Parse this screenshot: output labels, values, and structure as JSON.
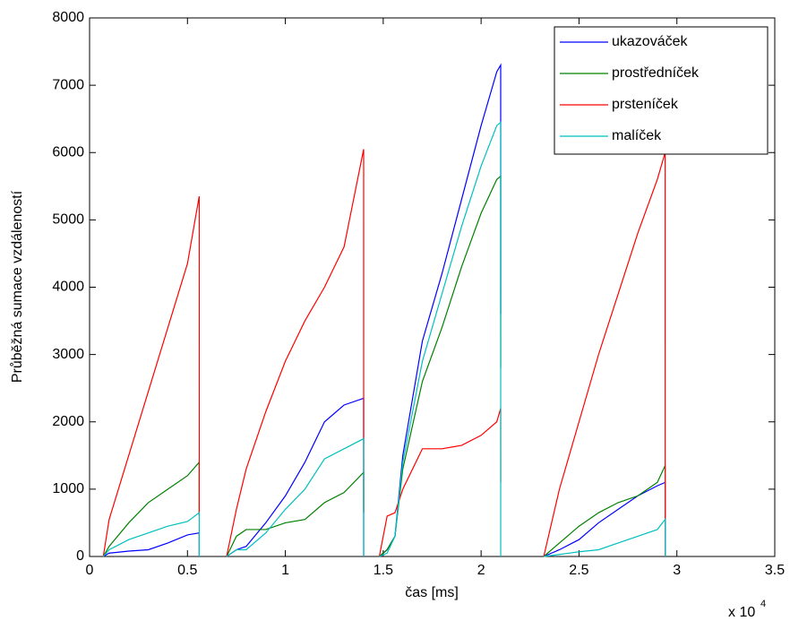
{
  "chart_data": {
    "type": "line",
    "x_label": "čas [ms]",
    "y_label": "Průběžná sumace vzdáleností",
    "x_scale_base": "x 10",
    "x_scale_exponent": "4",
    "x": [
      0.07,
      0.1,
      0.2,
      0.3,
      0.4,
      0.5,
      0.56,
      0.5601,
      0.63,
      0.7,
      0.75,
      0.8,
      0.9,
      1.0,
      1.1,
      1.2,
      1.3,
      1.4,
      1.4001,
      1.44,
      1.48,
      1.52,
      1.56,
      1.6,
      1.7,
      1.8,
      1.9,
      2.0,
      2.08,
      2.1,
      2.1001,
      2.2,
      2.32,
      2.4,
      2.5,
      2.6,
      2.7,
      2.8,
      2.9,
      2.94,
      2.9401
    ],
    "series": [
      {
        "name": "ukazováček",
        "color": "#0000ff",
        "values": [
          0,
          50,
          80,
          100,
          200,
          320,
          350,
          0,
          null,
          0,
          100,
          150,
          500,
          900,
          1400,
          2000,
          2250,
          2350,
          0,
          null,
          0,
          100,
          300,
          1500,
          3200,
          4200,
          5300,
          6400,
          7200,
          7300,
          3600,
          null,
          0,
          100,
          250,
          500,
          700,
          900,
          1050,
          1100,
          0
        ]
      },
      {
        "name": "prostředníček",
        "color": "#008000",
        "values": [
          0,
          150,
          500,
          800,
          1000,
          1200,
          1400,
          650,
          null,
          0,
          300,
          400,
          400,
          500,
          550,
          800,
          950,
          1250,
          650,
          null,
          0,
          100,
          300,
          1300,
          2600,
          3400,
          4300,
          5100,
          5600,
          5650,
          2800,
          null,
          0,
          200,
          450,
          650,
          800,
          900,
          1100,
          1350,
          0
        ]
      },
      {
        "name": "prsteníček",
        "color": "#ff0000",
        "values": [
          0,
          550,
          1500,
          2450,
          3400,
          4350,
          5350,
          600,
          null,
          0,
          700,
          1300,
          2150,
          2900,
          3500,
          4000,
          4600,
          6050,
          650,
          null,
          0,
          600,
          650,
          1000,
          1600,
          1600,
          1650,
          1800,
          2000,
          2200,
          1100,
          null,
          0,
          1000,
          2000,
          3000,
          3900,
          4800,
          5600,
          6000,
          0
        ]
      },
      {
        "name": "malíček",
        "color": "#00bfbf",
        "values": [
          0,
          100,
          250,
          350,
          450,
          520,
          650,
          0,
          null,
          0,
          100,
          100,
          350,
          700,
          1000,
          1450,
          1600,
          1750,
          0,
          null,
          0,
          50,
          300,
          1400,
          2900,
          3900,
          4900,
          5800,
          6400,
          6450,
          0,
          null,
          0,
          30,
          70,
          100,
          200,
          300,
          400,
          550,
          0
        ]
      }
    ],
    "xlim": [
      0,
      3.5
    ],
    "xticks": [
      0,
      0.5,
      1,
      1.5,
      2,
      2.5,
      3,
      3.5
    ],
    "ylim": [
      0,
      8000
    ],
    "yticks": [
      0,
      1000,
      2000,
      3000,
      4000,
      5000,
      6000,
      7000,
      8000
    ],
    "legend": "northeast"
  }
}
